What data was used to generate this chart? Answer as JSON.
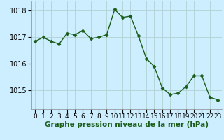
{
  "x": [
    0,
    1,
    2,
    3,
    4,
    5,
    6,
    7,
    8,
    9,
    10,
    11,
    12,
    13,
    14,
    15,
    16,
    17,
    18,
    19,
    20,
    21,
    22,
    23
  ],
  "y": [
    1016.85,
    1017.0,
    1016.85,
    1016.75,
    1017.15,
    1017.1,
    1017.25,
    1016.95,
    1017.0,
    1017.1,
    1018.05,
    1017.75,
    1017.8,
    1017.05,
    1016.2,
    1015.9,
    1015.1,
    1014.85,
    1014.9,
    1015.15,
    1015.55,
    1015.55,
    1014.75,
    1014.65
  ],
  "line_color": "#1a5c1a",
  "marker": "D",
  "marker_size": 2.5,
  "bg_color": "#cceeff",
  "grid_color": "#aacccc",
  "xlabel": "Graphe pression niveau de la mer (hPa)",
  "xlabel_fontsize": 7.5,
  "xtick_labels": [
    "0",
    "1",
    "2",
    "3",
    "4",
    "5",
    "6",
    "7",
    "8",
    "9",
    "10",
    "11",
    "12",
    "13",
    "14",
    "15",
    "16",
    "17",
    "18",
    "19",
    "20",
    "21",
    "22",
    "23"
  ],
  "ytick_values": [
    1015,
    1016,
    1017,
    1018
  ],
  "ylim": [
    1014.3,
    1018.35
  ],
  "xlim": [
    -0.5,
    23.5
  ],
  "tick_fontsize": 7.0,
  "linewidth": 1.0
}
